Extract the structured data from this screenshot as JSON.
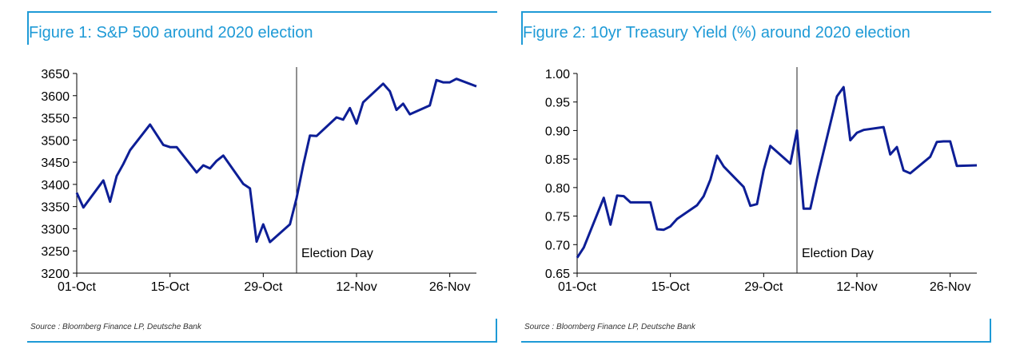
{
  "colors": {
    "accent": "#1e9ad6",
    "series": "#0d1e96",
    "axis": "#000000"
  },
  "charts": [
    {
      "title": "Figure 1: S&P 500 around 2020 election",
      "source": "Source : Bloomberg Finance LP, Deutsche Bank",
      "chart_data": {
        "type": "line",
        "title": "Figure 1: S&P 500 around 2020 election",
        "xlabel": "",
        "ylabel": "",
        "x_ticks": [
          "01-Oct",
          "15-Oct",
          "29-Oct",
          "12-Nov",
          "26-Nov"
        ],
        "x_tick_dates": [
          "2020-10-01",
          "2020-10-15",
          "2020-10-29",
          "2020-11-12",
          "2020-11-26"
        ],
        "xlim": [
          "2020-10-01",
          "2020-11-30"
        ],
        "ylim": [
          3200,
          3650
        ],
        "y_ticks": [
          3200,
          3250,
          3300,
          3350,
          3400,
          3450,
          3500,
          3550,
          3600,
          3650
        ],
        "grid": false,
        "annotation": {
          "date": "2020-11-03",
          "label": "Election Day"
        },
        "series": [
          {
            "x": [
              "2020-10-01",
              "2020-10-02",
              "2020-10-05",
              "2020-10-06",
              "2020-10-07",
              "2020-10-08",
              "2020-10-09",
              "2020-10-12",
              "2020-10-13",
              "2020-10-14",
              "2020-10-15",
              "2020-10-16",
              "2020-10-19",
              "2020-10-20",
              "2020-10-21",
              "2020-10-22",
              "2020-10-23",
              "2020-10-26",
              "2020-10-27",
              "2020-10-28",
              "2020-10-29",
              "2020-10-30",
              "2020-11-02",
              "2020-11-03",
              "2020-11-04",
              "2020-11-05",
              "2020-11-06",
              "2020-11-09",
              "2020-11-10",
              "2020-11-11",
              "2020-11-12",
              "2020-11-13",
              "2020-11-16",
              "2020-11-17",
              "2020-11-18",
              "2020-11-19",
              "2020-11-20",
              "2020-11-23",
              "2020-11-24",
              "2020-11-25",
              "2020-11-26",
              "2020-11-27",
              "2020-11-30"
            ],
            "values": [
              3381,
              3348,
              3409,
              3361,
              3419,
              3446,
              3477,
              3535,
              3512,
              3489,
              3484,
              3484,
              3427,
              3443,
              3436,
              3453,
              3465,
              3401,
              3391,
              3271,
              3310,
              3270,
              3310,
              3369,
              3443,
              3510,
              3509,
              3551,
              3546,
              3572,
              3537,
              3585,
              3627,
              3610,
              3568,
              3582,
              3558,
              3578,
              3635,
              3630,
              3630,
              3638,
              3621
            ]
          }
        ]
      }
    },
    {
      "title": "Figure 2: 10yr Treasury Yield (%) around 2020 election",
      "source": "Source : Bloomberg Finance LP, Deutsche Bank",
      "chart_data": {
        "type": "line",
        "title": "Figure 2: 10yr Treasury Yield (%) around 2020 election",
        "xlabel": "",
        "ylabel": "",
        "x_ticks": [
          "01-Oct",
          "15-Oct",
          "29-Oct",
          "12-Nov",
          "26-Nov"
        ],
        "x_tick_dates": [
          "2020-10-01",
          "2020-10-15",
          "2020-10-29",
          "2020-11-12",
          "2020-11-26"
        ],
        "xlim": [
          "2020-10-01",
          "2020-11-30"
        ],
        "ylim": [
          0.65,
          1.0
        ],
        "y_ticks": [
          "0.65",
          "0.70",
          "0.75",
          "0.80",
          "0.85",
          "0.90",
          "0.95",
          "1.00"
        ],
        "grid": false,
        "annotation": {
          "date": "2020-11-03",
          "label": "Election Day"
        },
        "series": [
          {
            "x": [
              "2020-10-01",
              "2020-10-02",
              "2020-10-05",
              "2020-10-06",
              "2020-10-07",
              "2020-10-08",
              "2020-10-09",
              "2020-10-12",
              "2020-10-13",
              "2020-10-14",
              "2020-10-15",
              "2020-10-16",
              "2020-10-19",
              "2020-10-20",
              "2020-10-21",
              "2020-10-22",
              "2020-10-23",
              "2020-10-26",
              "2020-10-27",
              "2020-10-28",
              "2020-10-29",
              "2020-10-30",
              "2020-11-02",
              "2020-11-03",
              "2020-11-04",
              "2020-11-05",
              "2020-11-06",
              "2020-11-09",
              "2020-11-10",
              "2020-11-11",
              "2020-11-12",
              "2020-11-13",
              "2020-11-16",
              "2020-11-17",
              "2020-11-18",
              "2020-11-19",
              "2020-11-20",
              "2020-11-23",
              "2020-11-24",
              "2020-11-25",
              "2020-11-26",
              "2020-11-27",
              "2020-11-30"
            ],
            "values": [
              0.677,
              0.695,
              0.782,
              0.735,
              0.786,
              0.785,
              0.774,
              0.774,
              0.727,
              0.726,
              0.732,
              0.745,
              0.769,
              0.785,
              0.814,
              0.856,
              0.837,
              0.801,
              0.768,
              0.771,
              0.83,
              0.873,
              0.842,
              0.9,
              0.763,
              0.763,
              0.815,
              0.96,
              0.976,
              0.883,
              0.896,
              0.901,
              0.906,
              0.858,
              0.871,
              0.83,
              0.825,
              0.854,
              0.88,
              0.881,
              0.881,
              0.838,
              0.839
            ]
          }
        ]
      }
    }
  ]
}
